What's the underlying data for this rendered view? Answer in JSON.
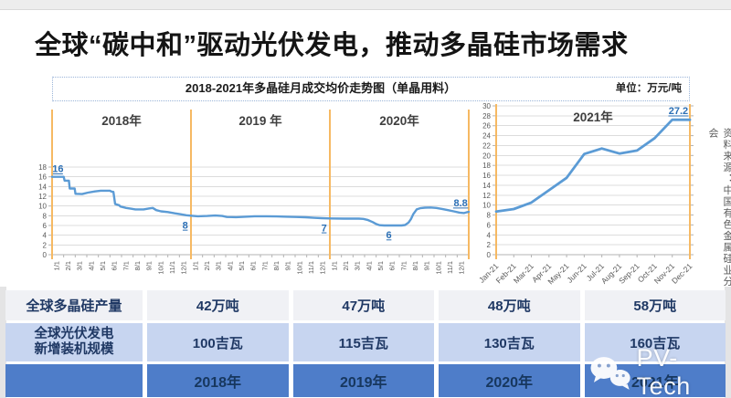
{
  "page": {
    "main_title": "全球“碳中和”驱动光伏发电，推动多晶硅市场需求",
    "chart_header": {
      "title": "2018-2021年多晶硅月成交均价走势图（单晶用料）",
      "unit": "单位：万元/吨"
    },
    "source_note": "资料来源：中国有色金属硅业分会",
    "watermark_text": "PV-Tech"
  },
  "colors": {
    "line_blue": "#5B9BD5",
    "separator_orange": "#F6B963",
    "annotation_blue": "#2B6FB5",
    "axis_gray": "#595959",
    "grid_gray": "#dcdcdc",
    "table_row1_bg": "#F0F1F5",
    "table_row2_bg": "#C7D5F0",
    "table_row3_bg": "#4E7DC9",
    "table_text_navy": "#1F3864"
  },
  "chart_data": [
    {
      "type": "line",
      "name": "polysilicon-monthly-price-2018-2020",
      "sections": [
        "2018年",
        "2019 年",
        "2020年"
      ],
      "month_labels": [
        "1/1",
        "2/1",
        "3/1",
        "4/1",
        "5/1",
        "6/1",
        "7/1",
        "8/1",
        "9/1",
        "10/1",
        "11/1",
        "12/1"
      ],
      "ylim": [
        0,
        18
      ],
      "ytick_step": 2,
      "grid": true,
      "line_color": "#5B9BD5",
      "separator_color": "#F6B963",
      "points": [
        [
          0,
          16
        ],
        [
          1.0,
          16
        ],
        [
          1.08,
          15.2
        ],
        [
          1.45,
          15.2
        ],
        [
          1.52,
          13.6
        ],
        [
          1.95,
          13.6
        ],
        [
          2.02,
          12.5
        ],
        [
          2.6,
          12.45
        ],
        [
          3.1,
          12.75
        ],
        [
          3.7,
          13.0
        ],
        [
          4.2,
          13.15
        ],
        [
          5.0,
          13.15
        ],
        [
          5.15,
          12.95
        ],
        [
          5.3,
          12.9
        ],
        [
          5.45,
          10.4
        ],
        [
          5.8,
          10.15
        ],
        [
          5.9,
          9.9
        ],
        [
          6.4,
          9.6
        ],
        [
          6.8,
          9.45
        ],
        [
          7.2,
          9.3
        ],
        [
          7.9,
          9.3
        ],
        [
          8.4,
          9.5
        ],
        [
          8.7,
          9.6
        ],
        [
          9.0,
          9.15
        ],
        [
          9.4,
          8.9
        ],
        [
          10.0,
          8.75
        ],
        [
          10.6,
          8.5
        ],
        [
          11.1,
          8.3
        ],
        [
          11.6,
          8.1
        ],
        [
          12.0,
          8.0
        ],
        [
          12.6,
          7.9
        ],
        [
          13.4,
          7.95
        ],
        [
          14.1,
          8.05
        ],
        [
          14.7,
          7.95
        ],
        [
          15.1,
          7.75
        ],
        [
          15.9,
          7.7
        ],
        [
          16.7,
          7.8
        ],
        [
          17.5,
          7.9
        ],
        [
          18.5,
          7.9
        ],
        [
          19.4,
          7.85
        ],
        [
          20.3,
          7.8
        ],
        [
          21.1,
          7.75
        ],
        [
          21.9,
          7.68
        ],
        [
          22.6,
          7.58
        ],
        [
          23.3,
          7.5
        ],
        [
          24.0,
          7.45
        ],
        [
          25.2,
          7.4
        ],
        [
          26.5,
          7.4
        ],
        [
          26.9,
          7.35
        ],
        [
          27.3,
          7.1
        ],
        [
          27.7,
          6.7
        ],
        [
          28.0,
          6.3
        ],
        [
          28.3,
          6.05
        ],
        [
          28.7,
          6.0
        ],
        [
          30.2,
          6.0
        ],
        [
          30.5,
          6.1
        ],
        [
          30.8,
          6.6
        ],
        [
          31.0,
          7.3
        ],
        [
          31.2,
          8.3
        ],
        [
          31.5,
          9.3
        ],
        [
          31.8,
          9.55
        ],
        [
          32.2,
          9.65
        ],
        [
          32.7,
          9.7
        ],
        [
          33.2,
          9.6
        ],
        [
          33.7,
          9.4
        ],
        [
          34.2,
          9.15
        ],
        [
          34.7,
          8.9
        ],
        [
          35.2,
          8.65
        ],
        [
          35.6,
          8.55
        ],
        [
          35.8,
          8.7
        ],
        [
          36,
          8.8
        ]
      ],
      "annotations": [
        {
          "label": "16",
          "m": 0.5,
          "v": 16,
          "dy": -5
        },
        {
          "label": "8",
          "m": 11.5,
          "v": 8.0,
          "dy": 14
        },
        {
          "label": "7",
          "m": 23.5,
          "v": 7.45,
          "dy": 14
        },
        {
          "label": "6",
          "m": 29.1,
          "v": 6.0,
          "dy": 14
        },
        {
          "label": "8.8",
          "m": 35.3,
          "v": 8.8,
          "dy": -6
        }
      ]
    },
    {
      "type": "line",
      "name": "polysilicon-monthly-price-2021",
      "section": "2021年",
      "x_labels": [
        "Jan-21",
        "Feb-21",
        "Mar-21",
        "Apr-21",
        "May-21",
        "Jun-21",
        "Jul-21",
        "Aug-21",
        "Sep-21",
        "Oct-21",
        "Nov-21",
        "Dec-21"
      ],
      "ylim": [
        0,
        30
      ],
      "ytick_step": 2,
      "grid": true,
      "line_color": "#5B9BD5",
      "separator_color": "#F6B963",
      "values": [
        8.7,
        9.2,
        10.5,
        13.0,
        15.5,
        20.3,
        21.4,
        20.4,
        21.0,
        23.5,
        27.2,
        27.2
      ],
      "annotations": [
        {
          "label": "27.2",
          "i": 10.35,
          "v": 27.2,
          "dy": -6
        }
      ]
    },
    {
      "type": "table",
      "name": "annual-summary",
      "rows": [
        {
          "label": "全球多晶硅产量",
          "values": [
            "42万吨",
            "47万吨",
            "48万吨",
            "58万吨"
          ]
        },
        {
          "label": "全球光伏发电\n新增装机规模",
          "values": [
            "100吉瓦",
            "115吉瓦",
            "130吉瓦",
            "160吉瓦"
          ]
        },
        {
          "label": "",
          "values": [
            "2018年",
            "2019年",
            "2020年",
            "2021年"
          ]
        }
      ]
    }
  ]
}
